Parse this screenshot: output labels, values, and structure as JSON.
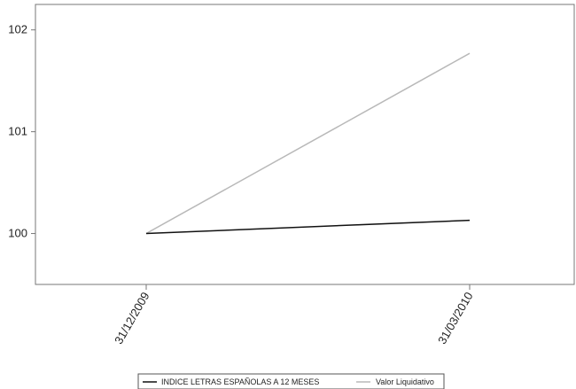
{
  "chart_data": {
    "type": "line",
    "title": "",
    "xlabel": "",
    "ylabel": "",
    "categories": [
      "31/12/2009",
      "31/03/2010"
    ],
    "ylim": [
      99.5,
      102.25
    ],
    "yticks": [
      100,
      101,
      102
    ],
    "series": [
      {
        "name": "INDICE LETRAS ESPAÑOLAS A 12 MESES",
        "values": [
          100.0,
          100.13
        ],
        "color": "#111111"
      },
      {
        "name": "Valor Liquidativo",
        "values": [
          100.0,
          101.77
        ],
        "color": "#b8b8b8"
      }
    ],
    "grid": false,
    "legend_position": "bottom-center"
  }
}
